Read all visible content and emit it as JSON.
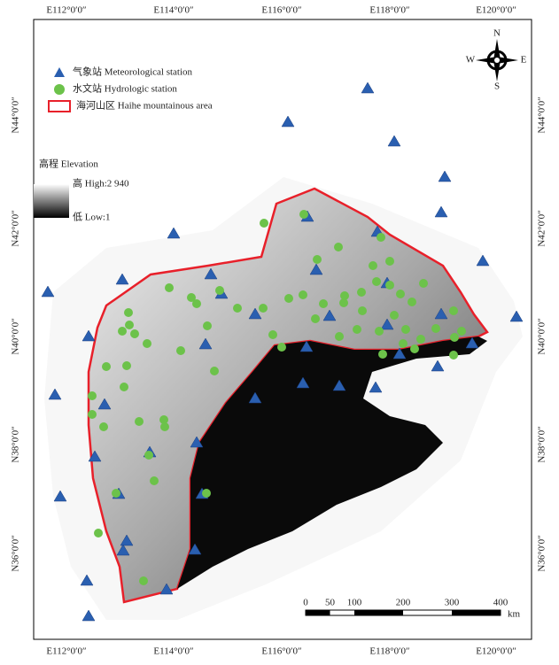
{
  "axes": {
    "top": [
      "E112°0′0″",
      "E114°0′0″",
      "E116°0′0″",
      "E118°0′0″",
      "E120°0′0″"
    ],
    "left": [
      "N44°0′0″",
      "N42°0′0″",
      "N40°0′0″",
      "N38°0′0″",
      "N36°0′0″"
    ]
  },
  "legend": {
    "items": [
      "气象站 Meteorological station",
      "水文站 Hydrologic station",
      "海河山区 Haihe mountainous area"
    ],
    "elevation_title": "高程 Elevation",
    "high": "高 High:2 940",
    "low": "低 Low:1"
  },
  "compass": {
    "n": "N",
    "e": "E",
    "s": "S",
    "w": "W"
  },
  "scale_bar": {
    "labels": [
      0,
      50,
      100,
      200,
      300,
      400
    ],
    "unit": "km"
  }
}
